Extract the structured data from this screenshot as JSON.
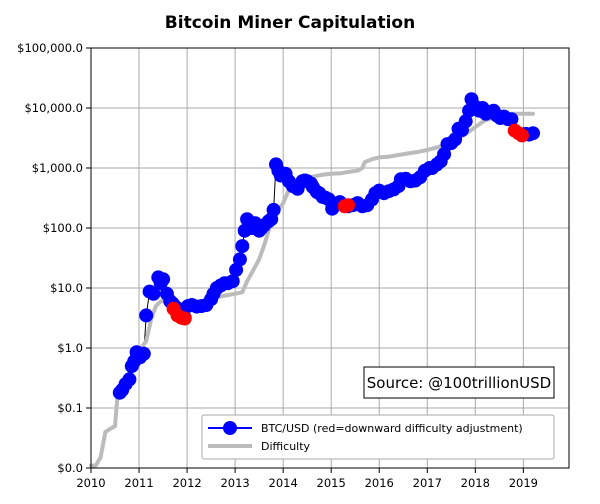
{
  "chart_data": {
    "type": "scatter",
    "title": "Bitcoin Miner Capitulation",
    "xlabel": "",
    "ylabel": "",
    "x_scale": "linear",
    "y_scale": "log",
    "xlim": [
      2010,
      2019.95
    ],
    "ylim": [
      0.01,
      100000
    ],
    "x_ticks": [
      2010,
      2011,
      2012,
      2013,
      2014,
      2015,
      2016,
      2017,
      2018,
      2019
    ],
    "x_tick_labels": [
      "2010",
      "2011",
      "2012",
      "2013",
      "2014",
      "2015",
      "2016",
      "2017",
      "2018",
      "2019"
    ],
    "y_ticks": [
      0.01,
      0.1,
      1,
      10,
      100,
      1000,
      10000,
      100000
    ],
    "y_tick_labels": [
      "$0.0",
      "$0.1",
      "$1.0",
      "$10.0",
      "$100.0",
      "$1,000.0",
      "$10,000.0",
      "$100,000.0"
    ],
    "grid": true,
    "legend_position": "lower-right",
    "annotation": "Source: @100trillionUSD",
    "colors": {
      "price": "#0000ff",
      "downward_adjustment": "#ff0000",
      "difficulty": "#bbbbbb",
      "grid": "#aaaaaa"
    },
    "series": [
      {
        "name": "BTC/USD (red=downward difficulty adjustment)",
        "type": "scatter",
        "points": [
          [
            2010.6,
            0.18
          ],
          [
            2010.65,
            0.2
          ],
          [
            2010.72,
            0.25
          ],
          [
            2010.8,
            0.3
          ],
          [
            2010.85,
            0.5
          ],
          [
            2010.9,
            0.6
          ],
          [
            2010.95,
            0.85
          ],
          [
            2011.02,
            0.7
          ],
          [
            2011.1,
            0.8
          ],
          [
            2011.15,
            3.5
          ],
          [
            2011.22,
            8.7
          ],
          [
            2011.3,
            8.0
          ],
          [
            2011.4,
            15.0
          ],
          [
            2011.45,
            12.0
          ],
          [
            2011.5,
            14.0
          ],
          [
            2011.58,
            8.0
          ],
          [
            2011.65,
            6.0
          ],
          [
            2011.7,
            5.5
          ],
          [
            2011.76,
            4.8
          ],
          [
            2011.82,
            3.5
          ],
          [
            2011.88,
            3.3
          ],
          [
            2011.95,
            3.2
          ],
          [
            2012.02,
            5.0
          ],
          [
            2012.1,
            5.2
          ],
          [
            2012.2,
            4.9
          ],
          [
            2012.3,
            5.0
          ],
          [
            2012.4,
            5.2
          ],
          [
            2012.5,
            6.5
          ],
          [
            2012.55,
            8.0
          ],
          [
            2012.62,
            10.0
          ],
          [
            2012.7,
            11.0
          ],
          [
            2012.78,
            12.0
          ],
          [
            2012.85,
            12.0
          ],
          [
            2012.95,
            13.0
          ],
          [
            2013.02,
            20.0
          ],
          [
            2013.1,
            30.0
          ],
          [
            2013.15,
            50.0
          ],
          [
            2013.2,
            90.0
          ],
          [
            2013.25,
            140.0
          ],
          [
            2013.3,
            120.0
          ],
          [
            2013.35,
            100.0
          ],
          [
            2013.42,
            120.0
          ],
          [
            2013.5,
            90.0
          ],
          [
            2013.55,
            100.0
          ],
          [
            2013.6,
            110.0
          ],
          [
            2013.7,
            130.0
          ],
          [
            2013.75,
            140.0
          ],
          [
            2013.8,
            200.0
          ],
          [
            2013.85,
            1150.0
          ],
          [
            2013.9,
            900.0
          ],
          [
            2013.95,
            750.0
          ],
          [
            2014.05,
            800.0
          ],
          [
            2014.12,
            600.0
          ],
          [
            2014.2,
            500.0
          ],
          [
            2014.3,
            450.0
          ],
          [
            2014.4,
            600.0
          ],
          [
            2014.45,
            620.0
          ],
          [
            2014.5,
            600.0
          ],
          [
            2014.58,
            550.0
          ],
          [
            2014.62,
            480.0
          ],
          [
            2014.7,
            400.0
          ],
          [
            2014.75,
            380.0
          ],
          [
            2014.82,
            330.0
          ],
          [
            2014.88,
            320.0
          ],
          [
            2014.95,
            300.0
          ],
          [
            2015.02,
            210.0
          ],
          [
            2015.1,
            250.0
          ],
          [
            2015.18,
            270.0
          ],
          [
            2015.35,
            230.0
          ],
          [
            2015.45,
            240.0
          ],
          [
            2015.55,
            260.0
          ],
          [
            2015.65,
            230.0
          ],
          [
            2015.75,
            240.0
          ],
          [
            2015.85,
            300.0
          ],
          [
            2015.92,
            380.0
          ],
          [
            2016.0,
            420.0
          ],
          [
            2016.1,
            380.0
          ],
          [
            2016.2,
            410.0
          ],
          [
            2016.3,
            440.0
          ],
          [
            2016.4,
            500.0
          ],
          [
            2016.45,
            650.0
          ],
          [
            2016.55,
            660.0
          ],
          [
            2016.65,
            600.0
          ],
          [
            2016.75,
            620.0
          ],
          [
            2016.85,
            700.0
          ],
          [
            2016.95,
            900.0
          ],
          [
            2017.05,
            1000.0
          ],
          [
            2017.1,
            1000.0
          ],
          [
            2017.2,
            1150.0
          ],
          [
            2017.28,
            1300.0
          ],
          [
            2017.35,
            1700.0
          ],
          [
            2017.42,
            2500.0
          ],
          [
            2017.5,
            2600.0
          ],
          [
            2017.58,
            3000.0
          ],
          [
            2017.65,
            4500.0
          ],
          [
            2017.72,
            4300.0
          ],
          [
            2017.8,
            6000.0
          ],
          [
            2017.87,
            9000.0
          ],
          [
            2017.92,
            14000.0
          ],
          [
            2018.0,
            10500.0
          ],
          [
            2018.08,
            9000.0
          ],
          [
            2018.15,
            10000.0
          ],
          [
            2018.22,
            8000.0
          ],
          [
            2018.3,
            8500.0
          ],
          [
            2018.38,
            9000.0
          ],
          [
            2018.45,
            7500.0
          ],
          [
            2018.52,
            6800.0
          ],
          [
            2018.6,
            7200.0
          ],
          [
            2018.68,
            6500.0
          ],
          [
            2018.75,
            6500.0
          ],
          [
            2019.05,
            3700.0
          ],
          [
            2019.12,
            3600.0
          ],
          [
            2019.2,
            3800.0
          ]
        ]
      },
      {
        "name": "BTC/USD (red=downward difficulty adjustment)",
        "type": "scatter",
        "role": "downward_adjustment",
        "points": [
          [
            2011.72,
            4.5
          ],
          [
            2011.8,
            3.5
          ],
          [
            2011.88,
            3.2
          ],
          [
            2011.95,
            3.1
          ],
          [
            2015.28,
            230.0
          ],
          [
            2015.35,
            240.0
          ],
          [
            2018.82,
            4200.0
          ],
          [
            2018.9,
            3800.0
          ],
          [
            2018.97,
            3500.0
          ]
        ]
      },
      {
        "name": "Difficulty",
        "type": "line",
        "points": [
          [
            2010.0,
            0.011
          ],
          [
            2010.1,
            0.011
          ],
          [
            2010.2,
            0.015
          ],
          [
            2010.3,
            0.04
          ],
          [
            2010.4,
            0.045
          ],
          [
            2010.5,
            0.05
          ],
          [
            2010.55,
            0.15
          ],
          [
            2010.65,
            0.2
          ],
          [
            2010.72,
            0.3
          ],
          [
            2010.8,
            0.4
          ],
          [
            2010.9,
            0.8
          ],
          [
            2011.0,
            0.9
          ],
          [
            2011.08,
            1.1
          ],
          [
            2011.15,
            1.3
          ],
          [
            2011.25,
            3.0
          ],
          [
            2011.35,
            5.0
          ],
          [
            2011.45,
            6.0
          ],
          [
            2011.55,
            6.0
          ],
          [
            2011.7,
            5.8
          ],
          [
            2011.85,
            5.5
          ],
          [
            2012.0,
            5.2
          ],
          [
            2012.2,
            5.5
          ],
          [
            2012.4,
            6.0
          ],
          [
            2012.6,
            7.0
          ],
          [
            2012.8,
            7.5
          ],
          [
            2013.0,
            8.0
          ],
          [
            2013.15,
            8.5
          ],
          [
            2013.25,
            13.0
          ],
          [
            2013.35,
            18.0
          ],
          [
            2013.5,
            30.0
          ],
          [
            2013.6,
            50.0
          ],
          [
            2013.7,
            90.0
          ],
          [
            2013.8,
            140.0
          ],
          [
            2013.9,
            200.0
          ],
          [
            2014.0,
            260.0
          ],
          [
            2014.1,
            400.0
          ],
          [
            2014.25,
            500.0
          ],
          [
            2014.4,
            600.0
          ],
          [
            2014.55,
            700.0
          ],
          [
            2014.7,
            740.0
          ],
          [
            2014.85,
            780.0
          ],
          [
            2015.0,
            800.0
          ],
          [
            2015.2,
            820.0
          ],
          [
            2015.4,
            870.0
          ],
          [
            2015.55,
            900.0
          ],
          [
            2015.65,
            1000.0
          ],
          [
            2015.7,
            1250.0
          ],
          [
            2015.85,
            1400.0
          ],
          [
            2016.0,
            1500.0
          ],
          [
            2016.2,
            1550.0
          ],
          [
            2016.4,
            1650.0
          ],
          [
            2016.6,
            1750.0
          ],
          [
            2016.8,
            1850.0
          ],
          [
            2017.0,
            2000.0
          ],
          [
            2017.2,
            2200.0
          ],
          [
            2017.4,
            2500.0
          ],
          [
            2017.6,
            2900.0
          ],
          [
            2017.7,
            3300.0
          ],
          [
            2017.8,
            3700.0
          ],
          [
            2017.9,
            4200.0
          ],
          [
            2018.0,
            4800.0
          ],
          [
            2018.1,
            5500.0
          ],
          [
            2018.2,
            6200.0
          ],
          [
            2018.35,
            6800.0
          ],
          [
            2018.5,
            7300.0
          ],
          [
            2018.65,
            7800.0
          ],
          [
            2018.8,
            8000.0
          ],
          [
            2018.95,
            8000.0
          ],
          [
            2019.1,
            8000.0
          ],
          [
            2019.2,
            8000.0
          ]
        ]
      }
    ]
  }
}
